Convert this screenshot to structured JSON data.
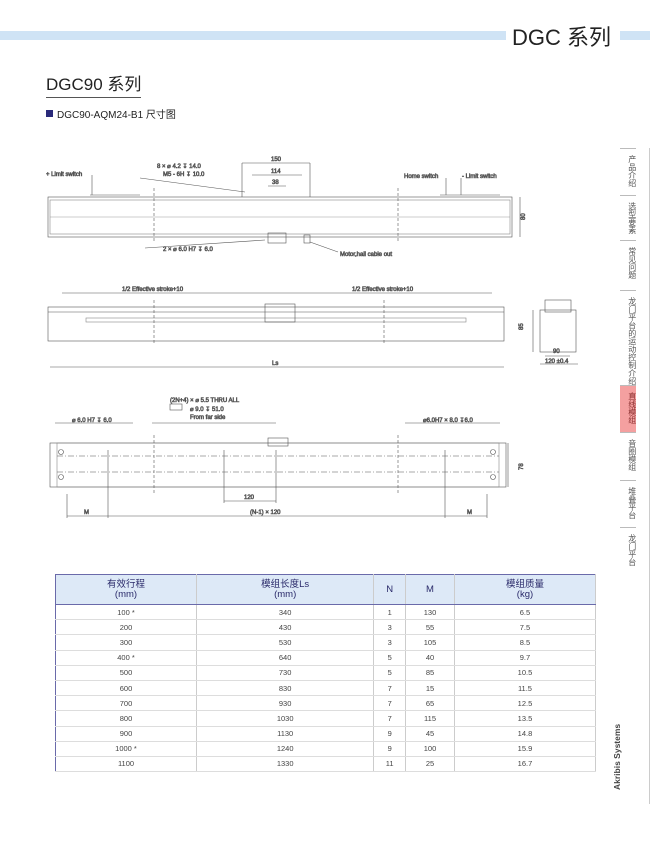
{
  "header": {
    "series_title": "DGC 系列"
  },
  "page": {
    "title": "DGC90 系列",
    "subtitle": "DGC90-AQM24-B1 尺寸图"
  },
  "drawing_top": {
    "limit_plus": "+ Limit switch",
    "holes": "8 × ⌀ 4.2 ↧ 14.0",
    "thread": "M5 - 6H ↧ 10.0",
    "dim_150": "150",
    "dim_114": "114",
    "dim_38": "38",
    "home": "Home switch",
    "limit_minus": "- Limit switch",
    "dim_80": "80",
    "pins": "2 × ⌀ 6.0 H7 ↧ 6.0",
    "cable": "Motor,hall cable out"
  },
  "drawing_side": {
    "half_left": "1/2 Effective stroke+10",
    "half_right": "1/2 Effective stroke+10",
    "ls": "Ls",
    "dim_85": "85",
    "dim_90": "90",
    "dim_120": "120 ±0.4"
  },
  "drawing_bottom": {
    "thru": "(2N+4) × ⌀ 5.5 THRU ALL",
    "cbore": "⌀ 9.0 ↧ 51.0",
    "far": "From far side",
    "pin_left": "⌀ 6.0 H7 ↧ 6.0",
    "pin_right": "⌀6.0H7 × 8.0 ↧6.0",
    "dim_120": "120",
    "pitch": "(N-1) × 120",
    "m_left": "M",
    "m_right": "M",
    "dim_78": "78"
  },
  "table": {
    "headers": [
      [
        "有效行程",
        "(mm)"
      ],
      [
        "模组长度Ls",
        "(mm)"
      ],
      [
        "N",
        ""
      ],
      [
        "M",
        ""
      ],
      [
        "模组质量",
        "(kg)"
      ]
    ],
    "rows": [
      [
        "100 *",
        "340",
        "1",
        "130",
        "6.5"
      ],
      [
        "200",
        "430",
        "3",
        "55",
        "7.5"
      ],
      [
        "300",
        "530",
        "3",
        "105",
        "8.5"
      ],
      [
        "400 *",
        "640",
        "5",
        "40",
        "9.7"
      ],
      [
        "500",
        "730",
        "5",
        "85",
        "10.5"
      ],
      [
        "600",
        "830",
        "7",
        "15",
        "11.5"
      ],
      [
        "700",
        "930",
        "7",
        "65",
        "12.5"
      ],
      [
        "800",
        "1030",
        "7",
        "115",
        "13.5"
      ],
      [
        "900",
        "1130",
        "9",
        "45",
        "14.8"
      ],
      [
        "1000 *",
        "1240",
        "9",
        "100",
        "15.9"
      ],
      [
        "1100",
        "1330",
        "11",
        "25",
        "16.7"
      ]
    ]
  },
  "sidebar": {
    "items": [
      "产品介绍",
      "选型要素",
      "常见问题",
      "龙门平台的运动控制介绍",
      "直线模组",
      "音圈模组",
      "堆叠平台",
      "龙门平台"
    ],
    "active": 4
  },
  "brand": "Akribis Systems"
}
